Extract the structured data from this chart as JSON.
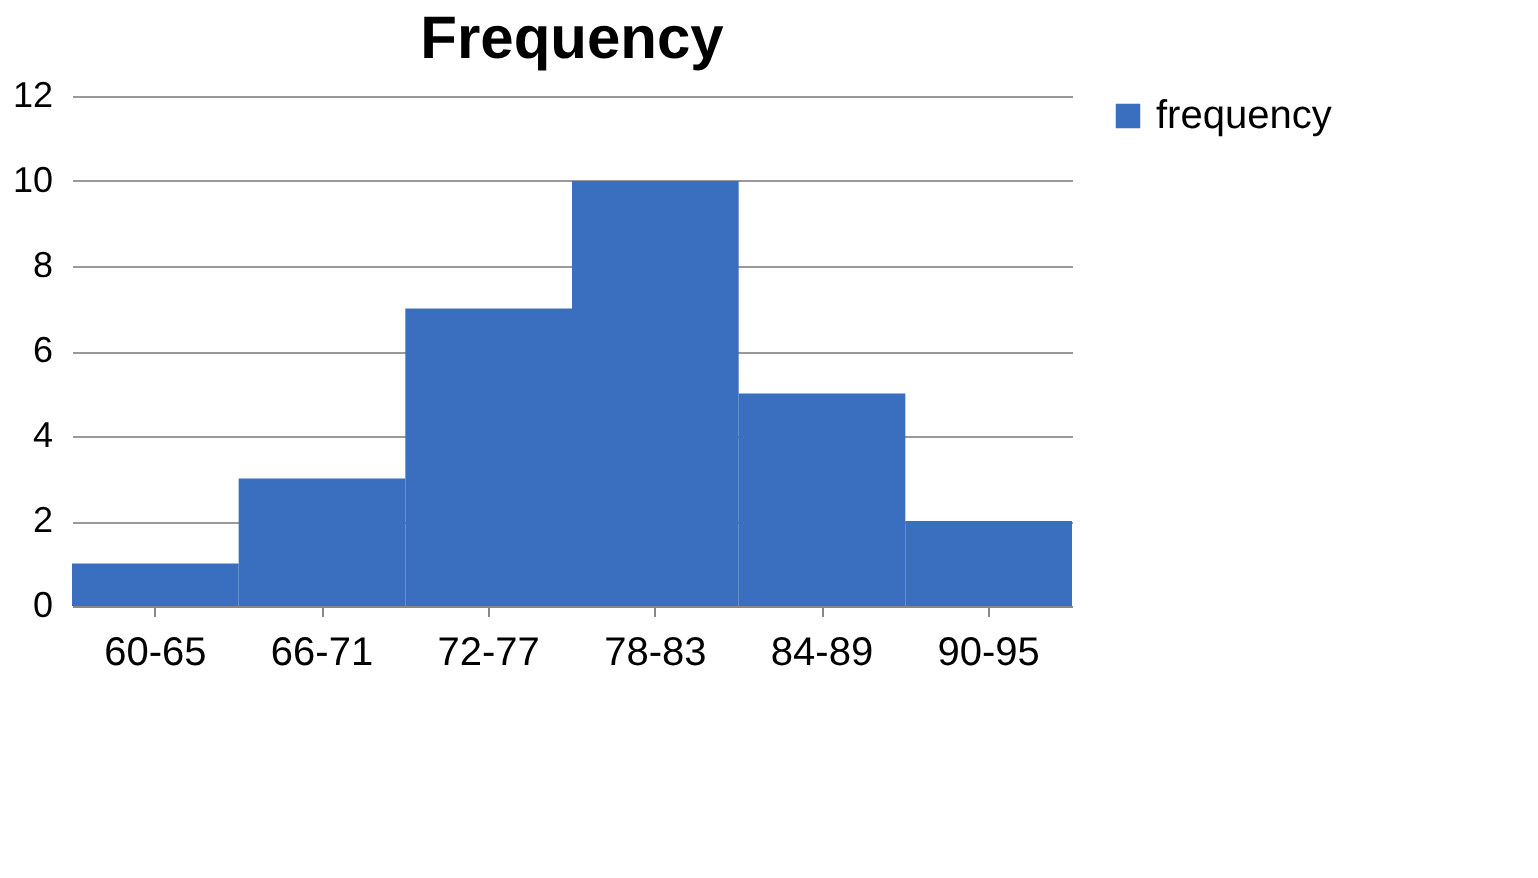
{
  "chart_data": {
    "type": "bar",
    "title": "Frequency",
    "categories": [
      "60-65",
      "66-71",
      "72-77",
      "78-83",
      "84-89",
      "90-95"
    ],
    "series": [
      {
        "name": "frequency",
        "color": "#3a6fbf",
        "values": [
          1,
          3,
          7,
          10,
          5,
          2
        ]
      }
    ],
    "ylim": [
      0,
      12
    ],
    "yticks": [
      0,
      2,
      4,
      6,
      8,
      10,
      12
    ],
    "grid": "y",
    "legend": "right"
  }
}
